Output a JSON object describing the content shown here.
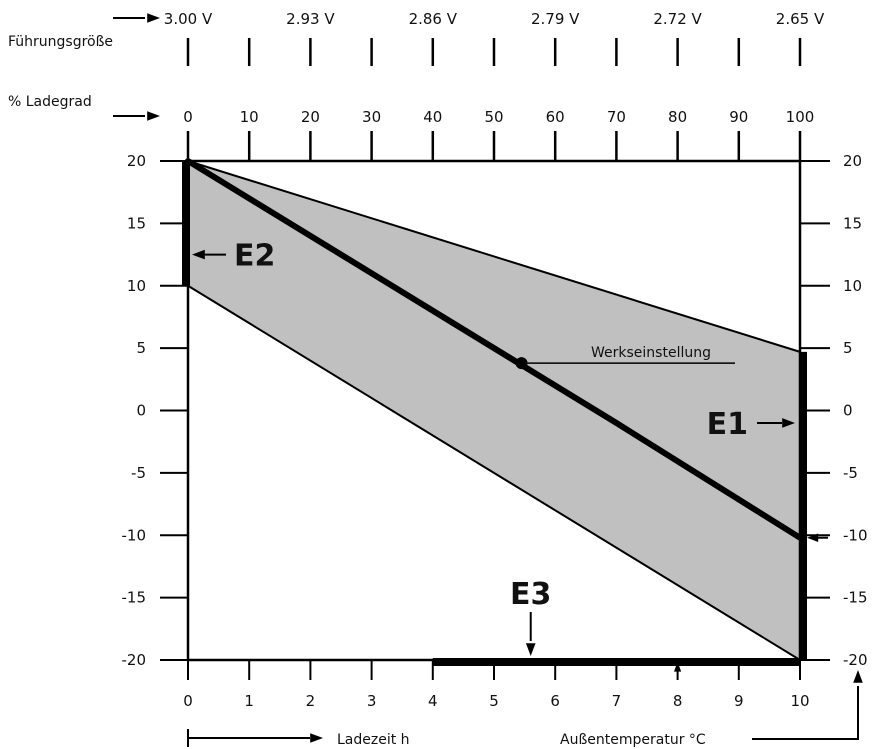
{
  "chart_data": {
    "type": "area",
    "voltage_axis": {
      "label": "Führungsgröße",
      "ticks": [
        "3.00 V",
        "2.93 V",
        "2.86 V",
        "2.79 V",
        "2.72 V",
        "2.65 V"
      ],
      "minor_ticks": 11
    },
    "charge_axis": {
      "label": "% Ladegrad",
      "ticks": [
        "0",
        "10",
        "20",
        "30",
        "40",
        "50",
        "60",
        "70",
        "80",
        "90",
        "100"
      ]
    },
    "x_axis": {
      "label": "Ladezeit h",
      "ticks": [
        "0",
        "1",
        "2",
        "3",
        "4",
        "5",
        "6",
        "7",
        "8",
        "9",
        "10"
      ],
      "range": [
        0,
        10
      ]
    },
    "y_axis": {
      "label": "Außentemperatur °C",
      "ticks": [
        "20",
        "15",
        "10",
        "5",
        "0",
        "-5",
        "-10",
        "-15",
        "-20"
      ],
      "range": [
        -20,
        20
      ]
    },
    "band": {
      "upper": [
        {
          "x": 0,
          "y": 20
        },
        {
          "x": 10,
          "y": 4.7
        }
      ],
      "lower": [
        {
          "x": 0,
          "y": 10
        },
        {
          "x": 10,
          "y": -20
        }
      ]
    },
    "default_line": [
      {
        "x": 0,
        "y": 20
      },
      {
        "x": 7,
        "y": -1
      },
      {
        "x": 10,
        "y": -10.2
      }
    ],
    "default_point": {
      "x": 5.45,
      "y": 3.8,
      "label": "Werkseinstellung"
    },
    "adjustments": [
      {
        "label": "E1",
        "axis": "right",
        "from": 4.7,
        "to": -20,
        "arrow_at": -1
      },
      {
        "label": "E2",
        "axis": "left",
        "from": 20,
        "to": 10,
        "arrow_at": 12.5
      },
      {
        "label": "E3",
        "axis": "bottom",
        "from": 4,
        "to": 10,
        "arrow_at": 5.6
      }
    ],
    "colors": {
      "band": "#c0c0c0",
      "line": "#000000"
    }
  }
}
